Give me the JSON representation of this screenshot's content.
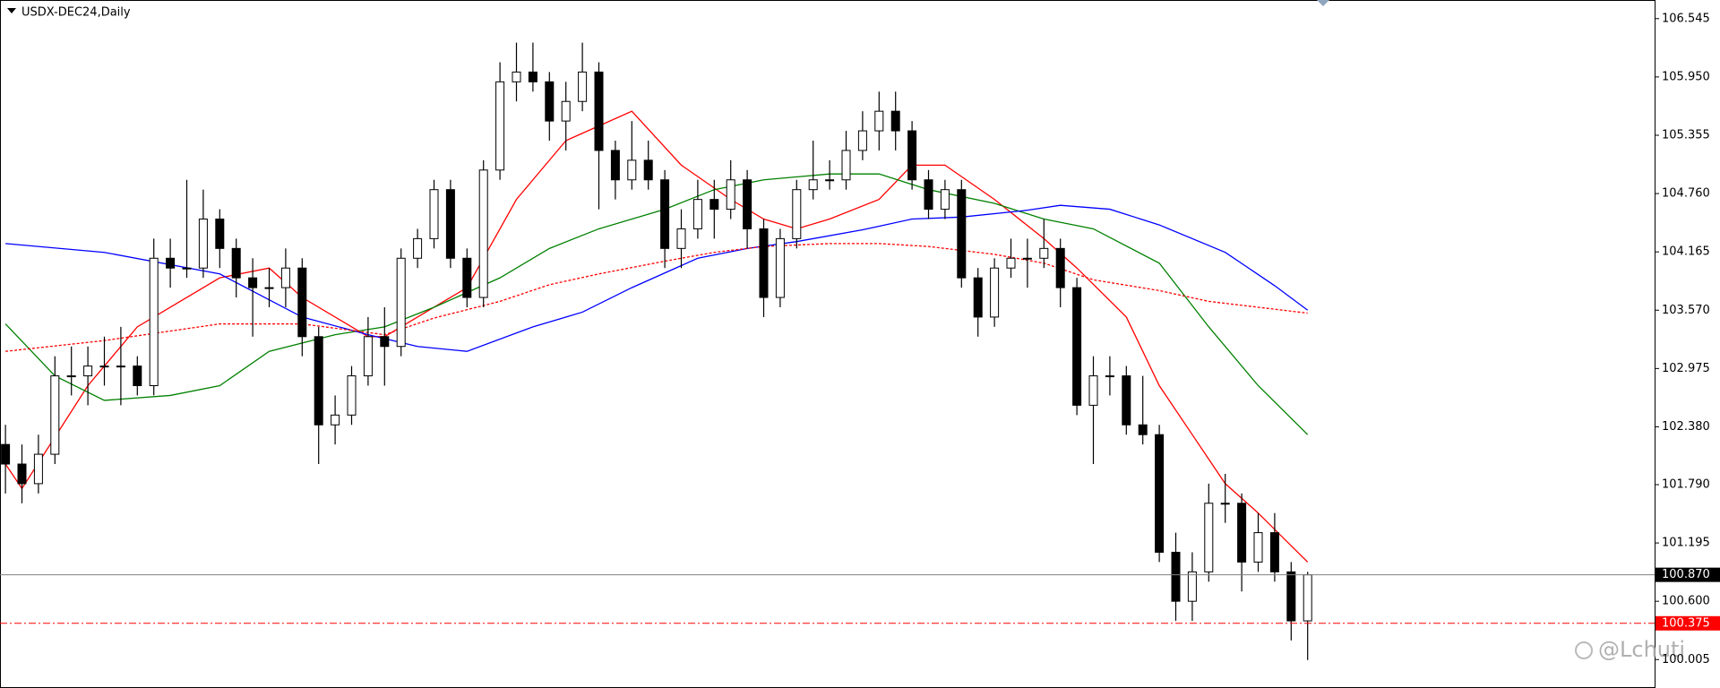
{
  "chart_data": {
    "type": "candlestick",
    "title": "USDX-DEC24,Daily",
    "ylim": [
      99.715,
      106.735
    ],
    "yticks": [
      106.545,
      {
        "value": 105.95,
        "label": "105.950"
      },
      105.355,
      {
        "value": 104.76,
        "label": "104.760"
      },
      104.165,
      {
        "value": 103.57,
        "label": "103.570"
      },
      102.975,
      {
        "value": 102.38,
        "label": "102.380"
      },
      {
        "value": 101.79,
        "label": "101.790"
      },
      101.195,
      {
        "value": 100.6,
        "label": "100.600"
      },
      100.005
    ],
    "up_color": "#ffffff",
    "down_color": "#000000",
    "candles": [
      [
        102.2,
        102.4,
        101.7,
        102.0
      ],
      [
        102.0,
        102.2,
        101.6,
        101.8
      ],
      [
        101.8,
        102.3,
        101.7,
        102.1
      ],
      [
        102.1,
        103.1,
        102.0,
        102.9
      ],
      [
        102.9,
        103.2,
        102.7,
        102.9
      ],
      [
        102.9,
        103.2,
        102.6,
        103.0
      ],
      [
        103.0,
        103.3,
        102.8,
        103.0
      ],
      [
        103.0,
        103.4,
        102.6,
        103.0
      ],
      [
        103.0,
        103.1,
        102.7,
        102.8
      ],
      [
        102.8,
        104.3,
        102.7,
        104.1
      ],
      [
        104.1,
        104.3,
        103.8,
        104.0
      ],
      [
        104.0,
        104.9,
        103.9,
        104.0
      ],
      [
        104.0,
        104.8,
        103.9,
        104.5
      ],
      [
        104.5,
        104.6,
        104.0,
        104.2
      ],
      [
        104.2,
        104.3,
        103.7,
        103.9
      ],
      [
        103.9,
        104.1,
        103.3,
        103.8
      ],
      [
        103.8,
        104.0,
        103.6,
        103.8
      ],
      [
        103.8,
        104.2,
        103.6,
        104.0
      ],
      [
        104.0,
        104.1,
        103.1,
        103.3
      ],
      [
        103.3,
        103.4,
        102.0,
        102.4
      ],
      [
        102.4,
        102.7,
        102.2,
        102.5
      ],
      [
        102.5,
        103.0,
        102.4,
        102.9
      ],
      [
        102.9,
        103.5,
        102.8,
        103.3
      ],
      [
        103.3,
        103.6,
        102.8,
        103.2
      ],
      [
        103.2,
        104.2,
        103.1,
        104.1
      ],
      [
        104.1,
        104.4,
        104.0,
        104.3
      ],
      [
        104.3,
        104.9,
        104.2,
        104.8
      ],
      [
        104.8,
        104.9,
        104.0,
        104.1
      ],
      [
        104.1,
        104.2,
        103.6,
        103.7
      ],
      [
        103.7,
        105.1,
        103.6,
        105.0
      ],
      [
        105.0,
        106.1,
        104.9,
        105.9
      ],
      [
        105.9,
        106.3,
        105.7,
        106.0
      ],
      [
        106.0,
        106.3,
        105.8,
        105.9
      ],
      [
        105.9,
        106.0,
        105.3,
        105.5
      ],
      [
        105.5,
        105.9,
        105.2,
        105.7
      ],
      [
        105.7,
        106.3,
        105.6,
        106.0
      ],
      [
        106.0,
        106.1,
        104.6,
        105.2
      ],
      [
        105.2,
        105.3,
        104.7,
        104.9
      ],
      [
        104.9,
        105.5,
        104.8,
        105.1
      ],
      [
        105.1,
        105.3,
        104.8,
        104.9
      ],
      [
        104.9,
        105.0,
        104.0,
        104.2
      ],
      [
        104.2,
        104.6,
        104.0,
        104.4
      ],
      [
        104.4,
        104.9,
        104.3,
        104.7
      ],
      [
        104.7,
        104.9,
        104.3,
        104.6
      ],
      [
        104.6,
        105.1,
        104.5,
        104.9
      ],
      [
        104.9,
        105.0,
        104.2,
        104.4
      ],
      [
        104.4,
        104.5,
        103.5,
        103.7
      ],
      [
        103.7,
        104.4,
        103.6,
        104.3
      ],
      [
        104.3,
        104.9,
        104.2,
        104.8
      ],
      [
        104.8,
        105.3,
        104.7,
        104.9
      ],
      [
        104.9,
        105.1,
        104.8,
        104.9
      ],
      [
        104.9,
        105.4,
        104.8,
        105.2
      ],
      [
        105.2,
        105.6,
        105.1,
        105.4
      ],
      [
        105.4,
        105.8,
        105.2,
        105.6
      ],
      [
        105.6,
        105.8,
        105.2,
        105.4
      ],
      [
        105.4,
        105.5,
        104.8,
        104.9
      ],
      [
        104.9,
        105.0,
        104.5,
        104.6
      ],
      [
        104.6,
        104.9,
        104.5,
        104.8
      ],
      [
        104.8,
        104.9,
        103.8,
        103.9
      ],
      [
        103.9,
        104.0,
        103.3,
        103.5
      ],
      [
        103.5,
        104.1,
        103.4,
        104.0
      ],
      [
        104.0,
        104.3,
        103.9,
        104.1
      ],
      [
        104.1,
        104.3,
        103.8,
        104.1
      ],
      [
        104.1,
        104.5,
        104.0,
        104.2
      ],
      [
        104.2,
        104.3,
        103.6,
        103.8
      ],
      [
        103.8,
        103.9,
        102.5,
        102.6
      ],
      [
        102.6,
        103.1,
        102.0,
        102.9
      ],
      [
        102.9,
        103.1,
        102.7,
        102.9
      ],
      [
        102.9,
        103.0,
        102.3,
        102.4
      ],
      [
        102.4,
        102.9,
        102.2,
        102.3
      ],
      [
        102.3,
        102.4,
        101.0,
        101.1
      ],
      [
        101.1,
        101.3,
        100.4,
        100.6
      ],
      [
        100.6,
        101.1,
        100.4,
        100.9
      ],
      [
        100.9,
        101.8,
        100.8,
        101.6
      ],
      [
        101.6,
        101.9,
        101.4,
        101.6
      ],
      [
        101.6,
        101.7,
        100.7,
        101.0
      ],
      [
        101.0,
        101.5,
        100.9,
        101.3
      ],
      [
        101.3,
        101.5,
        100.8,
        100.9
      ],
      [
        100.9,
        101.0,
        100.2,
        100.4
      ],
      [
        100.4,
        100.9,
        100.0,
        100.87
      ]
    ],
    "series": [
      {
        "color": "#ff0000",
        "dash": "solid",
        "x": [
          0,
          1,
          5,
          8,
          13,
          16,
          18,
          22,
          23,
          26,
          28,
          31,
          34,
          38,
          41,
          44,
          46,
          48,
          50,
          53,
          55,
          57,
          60,
          63,
          65,
          68,
          70,
          72,
          74,
          76,
          79
        ],
        "values": [
          102.0,
          101.75,
          102.8,
          103.4,
          103.9,
          104.0,
          103.7,
          103.3,
          103.3,
          103.6,
          103.8,
          104.7,
          105.3,
          105.6,
          105.05,
          104.7,
          104.5,
          104.4,
          104.5,
          104.7,
          105.05,
          105.05,
          104.7,
          104.3,
          104.0,
          103.5,
          102.8,
          102.3,
          101.8,
          101.5,
          101.0
        ]
      },
      {
        "color": "#008000",
        "dash": "solid",
        "x": [
          0,
          3,
          6,
          10,
          13,
          16,
          20,
          23,
          26,
          30,
          33,
          36,
          40,
          43,
          46,
          50,
          53,
          56,
          60,
          63,
          66,
          70,
          73,
          76,
          79
        ],
        "values": [
          103.43,
          102.9,
          102.65,
          102.7,
          102.8,
          103.15,
          103.32,
          103.4,
          103.6,
          103.9,
          104.2,
          104.4,
          104.6,
          104.8,
          104.9,
          104.96,
          104.96,
          104.8,
          104.66,
          104.5,
          104.4,
          104.05,
          103.4,
          102.8,
          102.3
        ]
      },
      {
        "color": "#0000ff",
        "dash": "solid",
        "x": [
          0,
          6,
          13,
          18,
          22,
          25,
          28,
          32,
          35,
          38,
          42,
          45,
          48,
          52,
          55,
          58,
          62,
          64,
          67,
          70,
          74,
          77,
          79
        ],
        "values": [
          104.25,
          104.16,
          103.94,
          103.5,
          103.32,
          103.2,
          103.15,
          103.4,
          103.55,
          103.8,
          104.1,
          104.2,
          104.27,
          104.39,
          104.5,
          104.52,
          104.59,
          104.64,
          104.6,
          104.44,
          104.16,
          103.82,
          103.57
        ]
      },
      {
        "color": "#ff0000",
        "dash": "dotted",
        "x": [
          0,
          6,
          13,
          18,
          23,
          26,
          30,
          33,
          36,
          40,
          43,
          46,
          50,
          53,
          56,
          60,
          63,
          66,
          70,
          73,
          76,
          79
        ],
        "values": [
          103.15,
          103.26,
          103.43,
          103.43,
          103.32,
          103.49,
          103.66,
          103.83,
          103.94,
          104.07,
          104.16,
          104.22,
          104.25,
          104.25,
          104.22,
          104.14,
          104.05,
          103.88,
          103.77,
          103.66,
          103.6,
          103.54
        ]
      }
    ],
    "price_lines": [
      {
        "value": 100.87,
        "label": "100.870",
        "color": "#808080",
        "label_bg": "#000000"
      },
      {
        "value": 100.375,
        "color": "#ff0000",
        "label_bg": "#ff0000"
      }
    ],
    "watermark": "@Lchuti"
  }
}
